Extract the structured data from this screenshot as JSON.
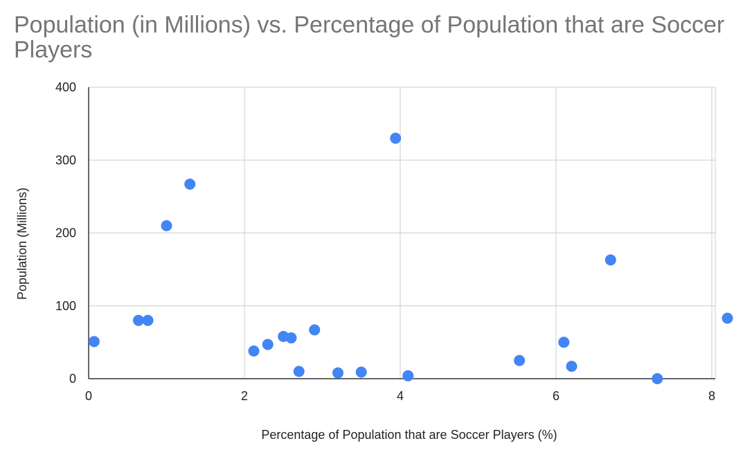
{
  "chart_data": {
    "type": "scatter",
    "title": "Population (in Millions) vs. Percentage of Population that are Soccer Players",
    "xlabel": "Percentage of Population that are Soccer Players (%)",
    "ylabel": "Population (Millions)",
    "xlim": [
      0,
      8.2
    ],
    "ylim": [
      0,
      400
    ],
    "x_ticks": [
      "0",
      "2",
      "4",
      "6",
      "8"
    ],
    "y_ticks": [
      "0",
      "100",
      "200",
      "300",
      "400"
    ],
    "grid": true,
    "legend": "none",
    "color": "#4285f4",
    "points": [
      {
        "x": 0.07,
        "y": 51
      },
      {
        "x": 0.64,
        "y": 80
      },
      {
        "x": 0.76,
        "y": 80
      },
      {
        "x": 1.0,
        "y": 210
      },
      {
        "x": 1.3,
        "y": 267
      },
      {
        "x": 2.12,
        "y": 38
      },
      {
        "x": 2.3,
        "y": 47
      },
      {
        "x": 2.5,
        "y": 58
      },
      {
        "x": 2.6,
        "y": 56
      },
      {
        "x": 2.7,
        "y": 10
      },
      {
        "x": 2.9,
        "y": 67
      },
      {
        "x": 3.2,
        "y": 8
      },
      {
        "x": 3.5,
        "y": 9
      },
      {
        "x": 3.94,
        "y": 330
      },
      {
        "x": 4.1,
        "y": 4
      },
      {
        "x": 5.53,
        "y": 25
      },
      {
        "x": 6.1,
        "y": 50
      },
      {
        "x": 6.2,
        "y": 17
      },
      {
        "x": 6.7,
        "y": 163
      },
      {
        "x": 7.3,
        "y": 0
      },
      {
        "x": 8.2,
        "y": 83
      }
    ]
  }
}
